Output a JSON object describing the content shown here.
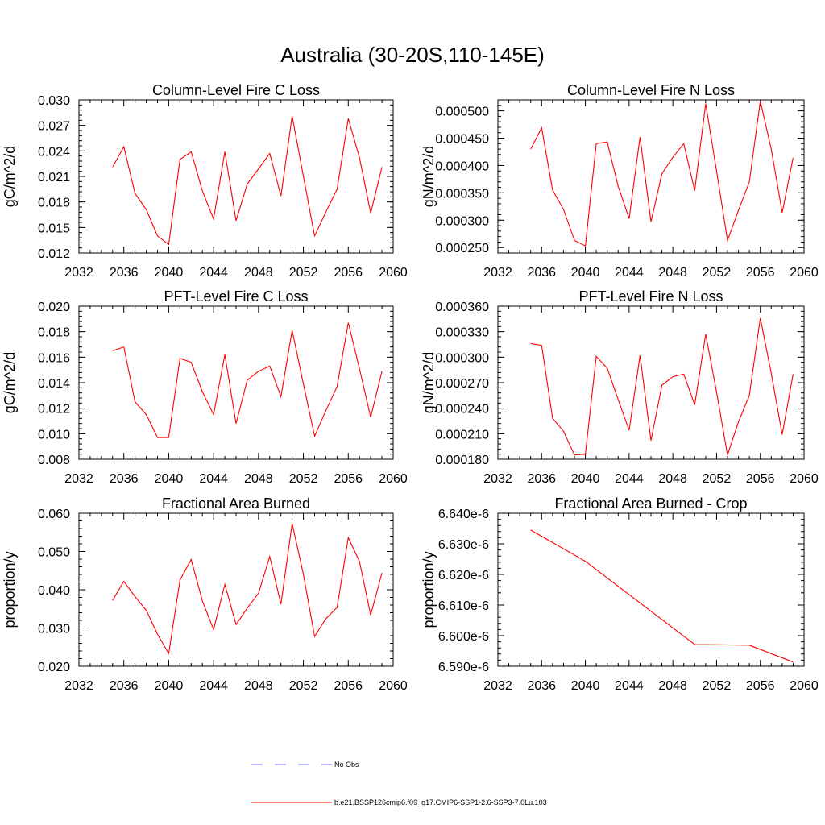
{
  "figure": {
    "title": "Australia (30-20S,110-145E)"
  },
  "colors": {
    "series": "#ff0000",
    "no_obs": "#6a6aff",
    "axis": "#000000"
  },
  "legend": {
    "items": [
      {
        "label": "No Obs",
        "style": "dashed",
        "color": "#6a6aff"
      },
      {
        "label": "b.e21.BSSP126cmip6.f09_g17.CMIP6-SSP1-2.6-SSP3-7.0Lu.103",
        "style": "solid",
        "color": "#ff0000"
      }
    ]
  },
  "chart_data": [
    {
      "type": "line",
      "title": "Column-Level Fire C Loss",
      "ylabel": "gC/m^2/d",
      "xlim": [
        2032,
        2060
      ],
      "ylim": [
        0.012,
        0.03
      ],
      "xticks": [
        "2032",
        "2036",
        "2040",
        "2044",
        "2048",
        "2052",
        "2056",
        "2060"
      ],
      "yticks": [
        "0.012",
        "0.015",
        "0.018",
        "0.021",
        "0.024",
        "0.027",
        "0.030"
      ],
      "series": [
        {
          "x": [
            2035,
            2036,
            2037,
            2038,
            2039,
            2040,
            2041,
            2042,
            2043,
            2044,
            2045,
            2046,
            2047,
            2048,
            2049,
            2050,
            2051,
            2052,
            2053,
            2054,
            2055,
            2056,
            2057,
            2058,
            2059
          ],
          "y": [
            0.0221,
            0.0245,
            0.019,
            0.0171,
            0.014,
            0.013,
            0.023,
            0.0239,
            0.0193,
            0.016,
            0.0239,
            0.0158,
            0.0201,
            0.0219,
            0.0237,
            0.0187,
            0.0281,
            0.021,
            0.014,
            0.0168,
            0.0195,
            0.0278,
            0.0232,
            0.0167,
            0.0221
          ]
        }
      ]
    },
    {
      "type": "line",
      "title": "Column-Level Fire N Loss",
      "ylabel": "gN/m^2/d",
      "xlim": [
        2032,
        2060
      ],
      "ylim": [
        0.00024,
        0.00052
      ],
      "xticks": [
        "2032",
        "2036",
        "2040",
        "2044",
        "2048",
        "2052",
        "2056",
        "2060"
      ],
      "yticks": [
        "0.000250",
        "0.000300",
        "0.000350",
        "0.000400",
        "0.000450",
        "0.000500"
      ],
      "series": [
        {
          "x": [
            2035,
            2036,
            2037,
            2038,
            2039,
            2040,
            2041,
            2042,
            2043,
            2044,
            2045,
            2046,
            2047,
            2048,
            2049,
            2050,
            2051,
            2052,
            2053,
            2054,
            2055,
            2056,
            2057,
            2058,
            2059
          ],
          "y": [
            0.00043,
            0.000469,
            0.000355,
            0.00032,
            0.000263,
            0.000253,
            0.00044,
            0.000443,
            0.000362,
            0.000303,
            0.000452,
            0.000297,
            0.000385,
            0.000415,
            0.00044,
            0.000354,
            0.000513,
            0.00039,
            0.000263,
            0.000318,
            0.00037,
            0.000518,
            0.00043,
            0.000314,
            0.000414
          ]
        }
      ]
    },
    {
      "type": "line",
      "title": "PFT-Level Fire C Loss",
      "ylabel": "gC/m^2/d",
      "xlim": [
        2032,
        2060
      ],
      "ylim": [
        0.008,
        0.02
      ],
      "xticks": [
        "2032",
        "2036",
        "2040",
        "2044",
        "2048",
        "2052",
        "2056",
        "2060"
      ],
      "yticks": [
        "0.008",
        "0.010",
        "0.012",
        "0.014",
        "0.016",
        "0.018",
        "0.020"
      ],
      "series": [
        {
          "x": [
            2035,
            2036,
            2037,
            2038,
            2039,
            2040,
            2041,
            2042,
            2043,
            2044,
            2045,
            2046,
            2047,
            2048,
            2049,
            2050,
            2051,
            2052,
            2053,
            2054,
            2055,
            2056,
            2057,
            2058,
            2059
          ],
          "y": [
            0.0165,
            0.0168,
            0.0125,
            0.0115,
            0.0097,
            0.0097,
            0.0159,
            0.0156,
            0.0133,
            0.0115,
            0.0162,
            0.0108,
            0.0142,
            0.0149,
            0.0153,
            0.0129,
            0.0181,
            0.0139,
            0.0098,
            0.0118,
            0.0137,
            0.0187,
            0.0151,
            0.0113,
            0.0149
          ]
        }
      ]
    },
    {
      "type": "line",
      "title": "PFT-Level Fire N Loss",
      "ylabel": "gN/m^2/d",
      "xlim": [
        2032,
        2060
      ],
      "ylim": [
        0.00018,
        0.00036
      ],
      "xticks": [
        "2032",
        "2036",
        "2040",
        "2044",
        "2048",
        "2052",
        "2056",
        "2060"
      ],
      "yticks": [
        "0.000180",
        "0.000210",
        "0.000240",
        "0.000270",
        "0.000300",
        "0.000330",
        "0.000360"
      ],
      "series": [
        {
          "x": [
            2035,
            2036,
            2037,
            2038,
            2039,
            2040,
            2041,
            2042,
            2043,
            2044,
            2045,
            2046,
            2047,
            2048,
            2049,
            2050,
            2051,
            2052,
            2053,
            2054,
            2055,
            2056,
            2057,
            2058,
            2059
          ],
          "y": [
            0.000316,
            0.000314,
            0.000228,
            0.000213,
            0.000185,
            0.000186,
            0.000301,
            0.000287,
            0.00025,
            0.000214,
            0.000302,
            0.000202,
            0.000267,
            0.000277,
            0.00028,
            0.000244,
            0.000327,
            0.000259,
            0.000185,
            0.000224,
            0.000255,
            0.000346,
            0.000281,
            0.000209,
            0.00028
          ]
        }
      ]
    },
    {
      "type": "line",
      "title": "Fractional Area Burned",
      "ylabel": "proportion/y",
      "xlim": [
        2032,
        2060
      ],
      "ylim": [
        0.02,
        0.06
      ],
      "xticks": [
        "2032",
        "2036",
        "2040",
        "2044",
        "2048",
        "2052",
        "2056",
        "2060"
      ],
      "yticks": [
        "0.020",
        "0.030",
        "0.040",
        "0.050",
        "0.060"
      ],
      "series": [
        {
          "x": [
            2035,
            2036,
            2037,
            2038,
            2039,
            2040,
            2041,
            2042,
            2043,
            2044,
            2045,
            2046,
            2047,
            2048,
            2049,
            2050,
            2051,
            2052,
            2053,
            2054,
            2055,
            2056,
            2057,
            2058,
            2059
          ],
          "y": [
            0.0372,
            0.0422,
            0.0382,
            0.0346,
            0.0284,
            0.0233,
            0.0425,
            0.0479,
            0.0371,
            0.0296,
            0.0414,
            0.0309,
            0.0352,
            0.0391,
            0.0487,
            0.0362,
            0.0573,
            0.044,
            0.0278,
            0.0324,
            0.0354,
            0.0536,
            0.0474,
            0.0334,
            0.0444
          ]
        }
      ]
    },
    {
      "type": "line",
      "title": "Fractional Area Burned - Crop",
      "ylabel": "proportion/y",
      "xlim": [
        2032,
        2060
      ],
      "ylim": [
        6.59e-06,
        6.64e-06
      ],
      "xticks": [
        "2032",
        "2036",
        "2040",
        "2044",
        "2048",
        "2052",
        "2056",
        "2060"
      ],
      "yticks": [
        "6.590e-6",
        "6.600e-6",
        "6.610e-6",
        "6.620e-6",
        "6.630e-6",
        "6.640e-6"
      ],
      "series": [
        {
          "x": [
            2035,
            2040,
            2045,
            2050,
            2055,
            2059
          ],
          "y": [
            6.6345e-06,
            6.6243e-06,
            6.6107e-06,
            6.5971e-06,
            6.5969e-06,
            6.5914e-06
          ]
        }
      ]
    }
  ]
}
